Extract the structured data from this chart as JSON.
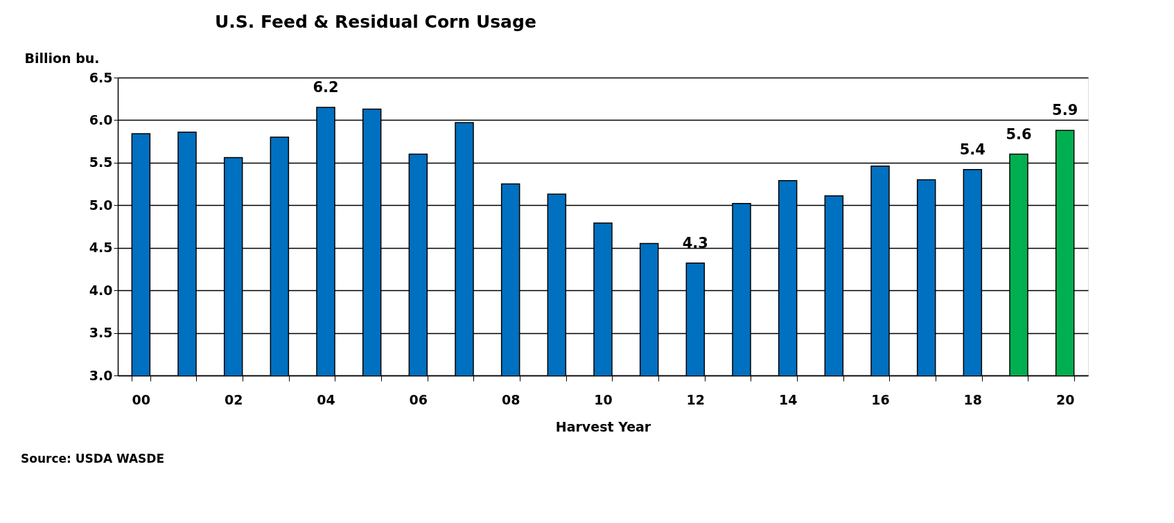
{
  "chart_data": {
    "type": "bar",
    "title": "U.S. Feed & Residual Corn Usage",
    "ylabel": "Billion bu.",
    "xlabel": "Harvest Year",
    "categories": [
      "00",
      null,
      "02",
      null,
      "04",
      null,
      "06",
      null,
      "08",
      null,
      "10",
      null,
      "12",
      null,
      "14",
      null,
      "16",
      null,
      "18",
      null,
      "20"
    ],
    "values": [
      5.84,
      5.86,
      5.56,
      5.8,
      6.15,
      6.13,
      5.6,
      5.97,
      5.25,
      5.13,
      4.79,
      4.55,
      4.32,
      5.02,
      5.29,
      5.11,
      5.46,
      5.3,
      5.42,
      5.6,
      5.88
    ],
    "colors": [
      "#0070c0",
      "#0070c0",
      "#0070c0",
      "#0070c0",
      "#0070c0",
      "#0070c0",
      "#0070c0",
      "#0070c0",
      "#0070c0",
      "#0070c0",
      "#0070c0",
      "#0070c0",
      "#0070c0",
      "#0070c0",
      "#0070c0",
      "#0070c0",
      "#0070c0",
      "#0070c0",
      "#0070c0",
      "#00b050",
      "#00b050"
    ],
    "value_labels": [
      null,
      null,
      null,
      null,
      "6.2",
      null,
      null,
      null,
      null,
      null,
      null,
      null,
      "4.3",
      null,
      null,
      null,
      null,
      null,
      "5.4",
      "5.6",
      "5.9"
    ],
    "ylim": [
      3.0,
      6.5
    ],
    "yticks": [
      {
        "value": 3.0,
        "label": "3.0"
      },
      {
        "value": 3.5,
        "label": "3.5"
      },
      {
        "value": 4.0,
        "label": "4.0"
      },
      {
        "value": 4.5,
        "label": "4.5"
      },
      {
        "value": 5.0,
        "label": "5.0"
      },
      {
        "value": 5.5,
        "label": "5.5"
      },
      {
        "value": 6.0,
        "label": "6.0"
      },
      {
        "value": 6.5,
        "label": "6.5"
      }
    ],
    "grid": "y",
    "annotations": [
      "Source:  USDA WASDE"
    ]
  }
}
